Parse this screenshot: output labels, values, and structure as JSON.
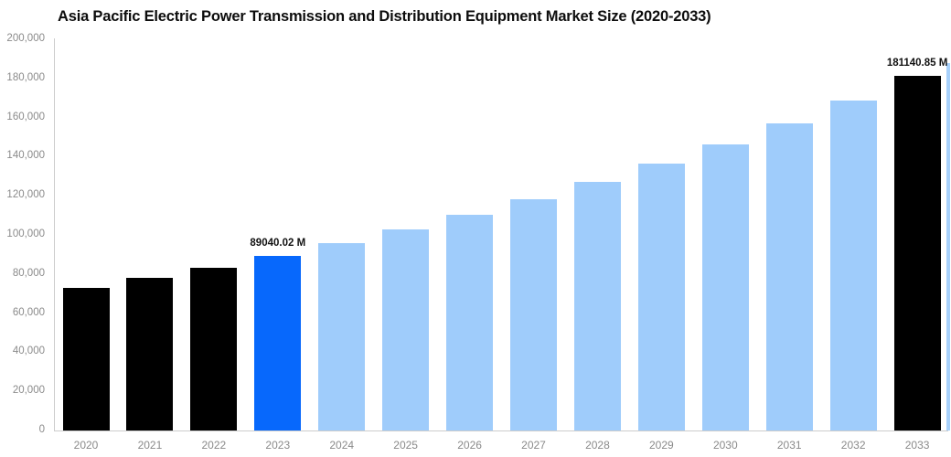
{
  "chart_data": {
    "type": "bar",
    "title": "Asia Pacific Electric Power Transmission and Distribution Equipment Market Size (2020-2033)",
    "xlabel": "",
    "ylabel": "",
    "categories": [
      "2020",
      "2021",
      "2022",
      "2023",
      "2024",
      "2025",
      "2026",
      "2027",
      "2028",
      "2029",
      "2030",
      "2031",
      "2032",
      "2033"
    ],
    "values": [
      72900,
      78000,
      83100,
      89040.02,
      95590,
      102630,
      110190,
      118300,
      127010,
      136360,
      146400,
      157180,
      168750,
      181140.85
    ],
    "bar_colors": [
      "#000000",
      "#000000",
      "#000000",
      "#0768FC",
      "#9FCCFB",
      "#9FCCFB",
      "#9FCCFB",
      "#9FCCFB",
      "#9FCCFB",
      "#9FCCFB",
      "#9FCCFB",
      "#9FCCFB",
      "#9FCCFB",
      "#000000"
    ],
    "data_labels": [
      null,
      null,
      null,
      "89040.02 M",
      null,
      null,
      null,
      null,
      null,
      null,
      null,
      null,
      null,
      "181140.85 M"
    ],
    "ylim": [
      0,
      200000
    ],
    "ytick_interval": 20000,
    "ytick_values": [
      0,
      20000,
      40000,
      60000,
      80000,
      100000,
      120000,
      140000,
      160000,
      180000,
      200000
    ],
    "ytick_labels": [
      "0",
      "20,000",
      "40,000",
      "60,000",
      "80,000",
      "100,000",
      "120,000",
      "140,000",
      "160,000",
      "180,000",
      "200,000"
    ],
    "grid": false,
    "legend": null,
    "value_unit": "M"
  },
  "style": {
    "background": "#ffffff",
    "axis_line_color": "#cccccc",
    "tick_label_color": "#8a8a8a",
    "value_label_color": "#111111",
    "title_color": "#0d0d0d",
    "highlight_bar_color": "#0768FC",
    "forecast_bar_color": "#9FCCFB",
    "historic_bar_color": "#000000"
  }
}
